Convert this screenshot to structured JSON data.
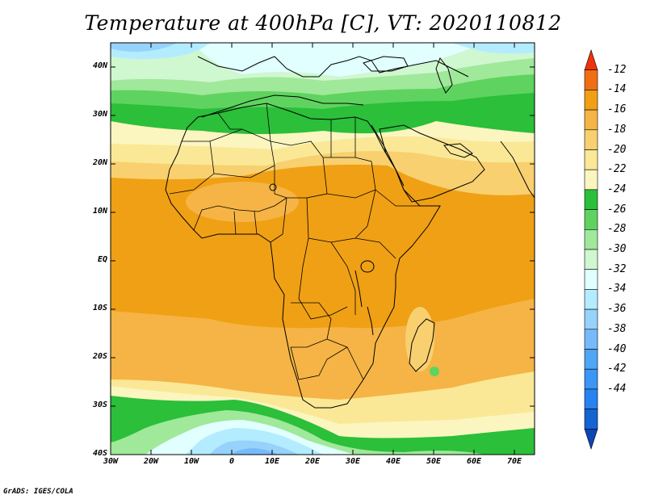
{
  "title": "Temperature at 400hPa [C], VT: 2020110812",
  "credit": "GrADS: IGES/COLA",
  "map": {
    "lon_range": [
      -30,
      75
    ],
    "lat_range": [
      -40,
      45
    ],
    "lat_ticks": [
      {
        "value": 40,
        "label": "40N"
      },
      {
        "value": 30,
        "label": "30N"
      },
      {
        "value": 20,
        "label": "20N"
      },
      {
        "value": 10,
        "label": "10N"
      },
      {
        "value": 0,
        "label": "EQ"
      },
      {
        "value": -10,
        "label": "10S"
      },
      {
        "value": -20,
        "label": "20S"
      },
      {
        "value": -30,
        "label": "30S"
      },
      {
        "value": -40,
        "label": "40S"
      }
    ],
    "lon_ticks": [
      {
        "value": -30,
        "label": "30W"
      },
      {
        "value": -20,
        "label": "20W"
      },
      {
        "value": -10,
        "label": "10W"
      },
      {
        "value": 0,
        "label": "0"
      },
      {
        "value": 10,
        "label": "10E"
      },
      {
        "value": 20,
        "label": "20E"
      },
      {
        "value": 30,
        "label": "30E"
      },
      {
        "value": 40,
        "label": "40E"
      },
      {
        "value": 50,
        "label": "50E"
      },
      {
        "value": 60,
        "label": "60E"
      },
      {
        "value": 70,
        "label": "70E"
      }
    ]
  },
  "colorbar": {
    "labels": [
      "-12",
      "-14",
      "-16",
      "-18",
      "-20",
      "-22",
      "-24",
      "-26",
      "-28",
      "-30",
      "-32",
      "-34",
      "-36",
      "-38",
      "-40",
      "-42",
      "-44"
    ],
    "colors": [
      "#f0320a",
      "#f06e14",
      "#f0a014",
      "#f5b445",
      "#f8d070",
      "#fae896",
      "#fbf5c0",
      "#2bbf3a",
      "#5fd35f",
      "#a0e89a",
      "#cff7d0",
      "#e1ffff",
      "#b4ecff",
      "#96d2fa",
      "#78b9fa",
      "#50a5f5",
      "#3c96f5",
      "#2882f0",
      "#1464d2",
      "#0a46b4"
    ]
  },
  "fill_colors": {
    "very_cold": "#78b9fa",
    "cold": "#96d2fa",
    "cool": "#b4ecff",
    "chill": "#e1ffff",
    "pale_green": "#cff7d0",
    "light_green": "#a0e89a",
    "green": "#5fd35f",
    "dark_green": "#2bbf3a",
    "cream": "#fbf5c0",
    "pale_yellow": "#fae896",
    "yellow": "#f8d070",
    "light_orange": "#f5b445",
    "orange": "#f0a014"
  }
}
